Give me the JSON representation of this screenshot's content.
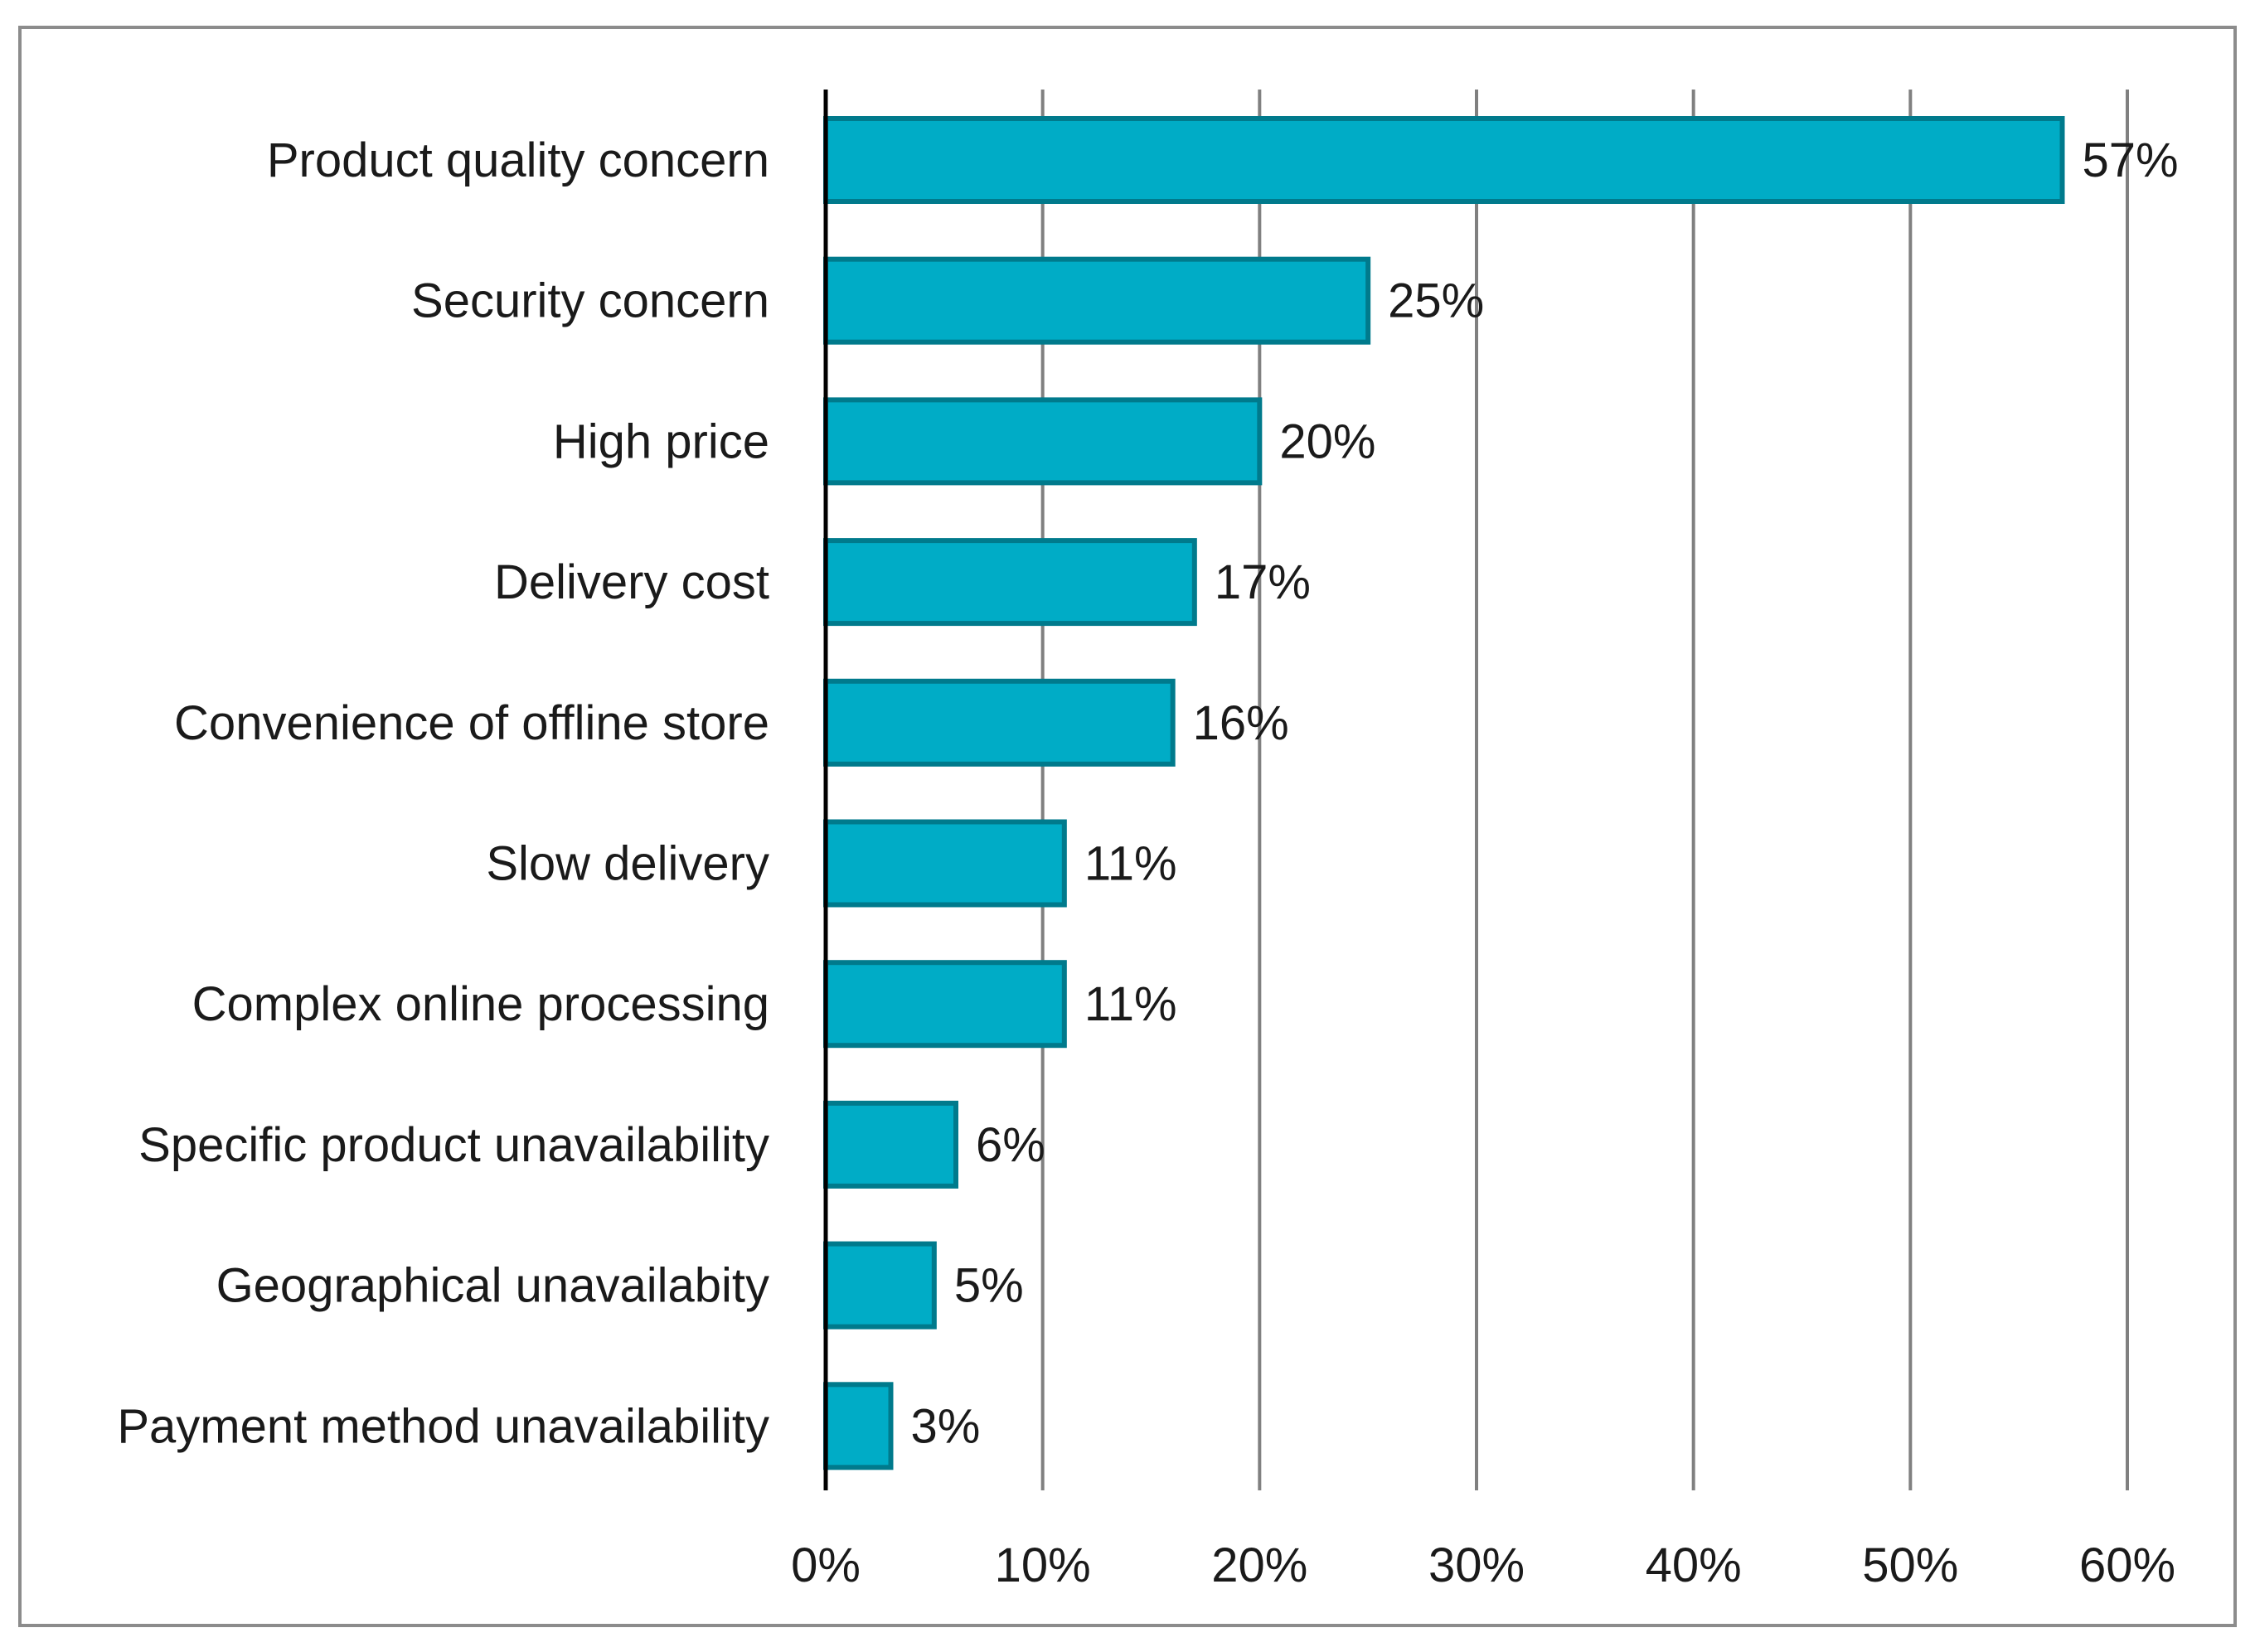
{
  "chart_data": {
    "type": "bar",
    "orientation": "horizontal",
    "title": "",
    "xlabel": "",
    "ylabel": "",
    "categories": [
      "Product quality concern",
      "Security concern",
      "High price",
      "Delivery cost",
      "Convenience of offline store",
      "Slow delivery",
      "Complex online processing",
      "Specific product unavailability",
      "Geographical unavailabity",
      "Payment method unavailability"
    ],
    "values": [
      57,
      25,
      20,
      17,
      16,
      11,
      11,
      6,
      5,
      3
    ],
    "value_labels": [
      "57%",
      "25%",
      "20%",
      "17%",
      "16%",
      "11%",
      "11%",
      "6%",
      "5%",
      "3%"
    ],
    "xlim": [
      0,
      60
    ],
    "xticks": [
      0,
      10,
      20,
      30,
      40,
      50,
      60
    ],
    "xtick_labels": [
      "0%",
      "10%",
      "20%",
      "30%",
      "40%",
      "50%",
      "60%"
    ],
    "grid": "vertical",
    "legend": "none",
    "colors": {
      "bar_fill": "#00acc6",
      "bar_stroke": "#007a8c",
      "gridline": "#808080",
      "axis": "#000000"
    }
  }
}
